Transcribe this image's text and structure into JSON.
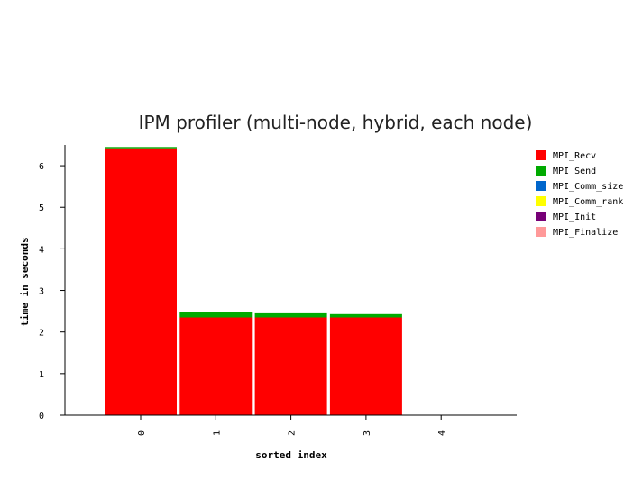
{
  "chart_data": {
    "type": "bar",
    "stacked": true,
    "title": "IPM profiler  (multi-node, hybrid, each node)",
    "xlabel": "sorted index",
    "ylabel": "time in seconds",
    "categories": [
      "0",
      "1",
      "2",
      "3",
      "4"
    ],
    "ylim": [
      0,
      6.5
    ],
    "yticks": [
      "0",
      "1",
      "2",
      "3",
      "4",
      "5",
      "6"
    ],
    "grid": false,
    "legend_position": "right",
    "series": [
      {
        "name": "MPI_Recv",
        "color": "#ff0000",
        "values": [
          6.42,
          2.35,
          2.35,
          2.35,
          0
        ]
      },
      {
        "name": "MPI_Send",
        "color": "#00aa00",
        "values": [
          0.03,
          0.13,
          0.1,
          0.08,
          0
        ]
      },
      {
        "name": "MPI_Comm_size",
        "color": "#0066cc",
        "values": [
          0,
          0,
          0,
          0,
          0
        ]
      },
      {
        "name": "MPI_Comm_rank",
        "color": "#ffff00",
        "values": [
          0,
          0,
          0,
          0,
          0
        ]
      },
      {
        "name": "MPI_Init",
        "color": "#770077",
        "values": [
          0,
          0,
          0,
          0,
          0
        ]
      },
      {
        "name": "MPI_Finalize",
        "color": "#ff9999",
        "values": [
          0,
          0,
          0,
          0,
          0
        ]
      }
    ]
  }
}
